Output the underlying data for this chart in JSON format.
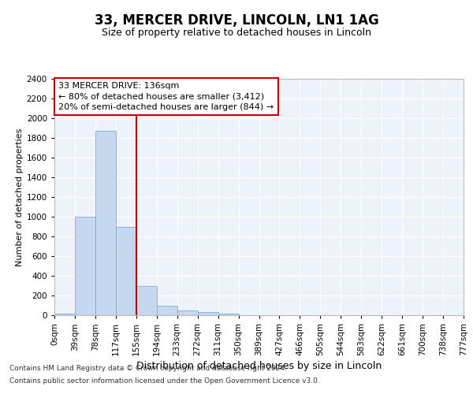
{
  "title1": "33, MERCER DRIVE, LINCOLN, LN1 1AG",
  "title2": "Size of property relative to detached houses in Lincoln",
  "xlabel": "Distribution of detached houses by size in Lincoln",
  "ylabel": "Number of detached properties",
  "bar_color": "#c5d8f0",
  "bar_edge_color": "#7aadd4",
  "bins_labels": [
    "0sqm",
    "39sqm",
    "78sqm",
    "117sqm",
    "155sqm",
    "194sqm",
    "233sqm",
    "272sqm",
    "311sqm",
    "350sqm",
    "389sqm",
    "427sqm",
    "466sqm",
    "505sqm",
    "544sqm",
    "583sqm",
    "622sqm",
    "661sqm",
    "700sqm",
    "738sqm",
    "777sqm"
  ],
  "values": [
    20,
    1000,
    1870,
    900,
    300,
    100,
    50,
    30,
    20,
    0,
    0,
    0,
    0,
    0,
    0,
    0,
    0,
    0,
    0,
    0
  ],
  "property_sqm": 136,
  "vline_x": 4.0,
  "vline_color": "#cc0000",
  "annotation_line1": "33 MERCER DRIVE: 136sqm",
  "annotation_line2": "← 80% of detached houses are smaller (3,412)",
  "annotation_line3": "20% of semi-detached houses are larger (844) →",
  "annotation_box_edgecolor": "#cc0000",
  "ylim_max": 2400,
  "ytick_step": 200,
  "chart_bg_color": "#eef2fb",
  "grid_color": "#ffffff",
  "fig_bg_color": "#ffffff",
  "footnote1": "Contains HM Land Registry data © Crown copyright and database right 2024.",
  "footnote2": "Contains public sector information licensed under the Open Government Licence v3.0.",
  "title1_fontsize": 12,
  "title2_fontsize": 9,
  "ylabel_fontsize": 8,
  "xlabel_fontsize": 9,
  "tick_fontsize": 7.5,
  "annot_fontsize": 8
}
